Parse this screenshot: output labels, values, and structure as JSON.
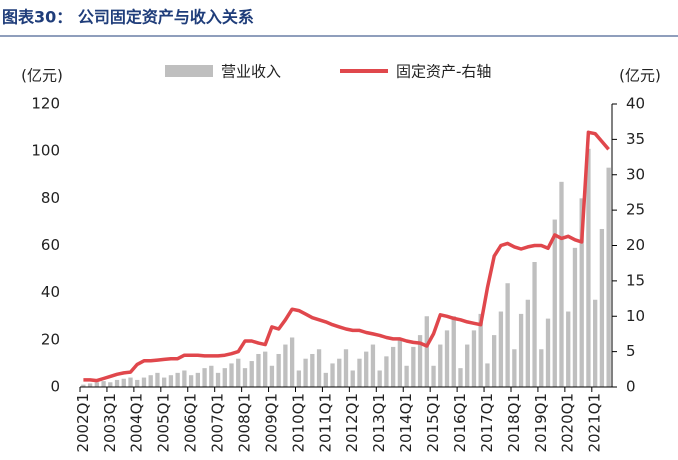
{
  "chart_data": {
    "type": "bar-line",
    "title": "图表30：  公司固定资产与收入关系",
    "y_label": "(亿元)",
    "y2_label": "(亿元)",
    "categories": [
      "2002Q1",
      null,
      null,
      null,
      "2003Q1",
      null,
      null,
      null,
      "2004Q1",
      null,
      null,
      null,
      "2005Q1",
      null,
      null,
      null,
      "2006Q1",
      null,
      null,
      null,
      "2007Q1",
      null,
      null,
      null,
      "2008Q1",
      null,
      null,
      null,
      "2009Q1",
      null,
      null,
      null,
      "2010Q1",
      null,
      null,
      null,
      "2011Q1",
      null,
      null,
      null,
      "2012Q1",
      null,
      null,
      null,
      "2013Q1",
      null,
      null,
      null,
      "2014Q1",
      null,
      null,
      null,
      "2015Q1",
      null,
      null,
      null,
      "2016Q1",
      null,
      null,
      null,
      "2017Q1",
      null,
      null,
      null,
      "2018Q1",
      null,
      null,
      null,
      "2019Q1",
      null,
      null,
      null,
      "2020Q1",
      null,
      null,
      null,
      "2021Q1",
      null,
      null
    ],
    "series": [
      {
        "name": "营业收入",
        "type": "bar",
        "color": "#bfbfbf",
        "values": [
          1,
          1.5,
          2,
          2.5,
          2,
          3,
          3.5,
          4,
          3,
          4,
          5,
          6,
          4,
          5,
          6,
          7,
          5,
          6,
          8,
          9,
          6,
          8,
          10,
          12,
          8,
          11,
          14,
          15,
          9,
          14,
          18,
          21,
          7,
          12,
          14,
          16,
          6,
          10,
          12,
          16,
          7,
          12,
          15,
          18,
          7,
          13,
          17,
          20,
          9,
          17,
          22,
          30,
          9,
          18,
          24,
          30,
          8,
          18,
          24,
          31,
          10,
          22,
          32,
          44,
          16,
          31,
          37,
          53,
          16,
          29,
          71,
          87,
          32,
          59,
          80,
          101,
          37,
          67,
          93
        ]
      },
      {
        "name": "固定资产-右轴",
        "type": "line",
        "axis": "y2",
        "color": "#e0474c",
        "values": [
          1,
          1,
          0.9,
          1.2,
          1.5,
          1.8,
          2,
          2.1,
          3.2,
          3.7,
          3.7,
          3.8,
          3.9,
          4,
          4,
          4.5,
          4.5,
          4.5,
          4.4,
          4.4,
          4.4,
          4.5,
          4.7,
          5,
          6.5,
          6.5,
          6.2,
          6,
          8.5,
          8.2,
          9.5,
          11,
          10.8,
          10.3,
          9.8,
          9.5,
          9.2,
          8.8,
          8.5,
          8.2,
          8,
          8,
          7.7,
          7.5,
          7.3,
          7,
          6.8,
          6.8,
          6.5,
          6.3,
          6.2,
          5.8,
          7.5,
          10.2,
          10,
          9.7,
          9.5,
          9.2,
          9,
          8.8,
          14,
          18.5,
          20,
          20.3,
          19.8,
          19.5,
          19.8,
          20,
          20,
          19.6,
          21.5,
          21,
          21.3,
          20.8,
          20.5,
          36,
          35.8,
          34.7,
          33.6
        ]
      }
    ],
    "ylim": [
      0,
      120
    ],
    "yticks": [
      0,
      20,
      40,
      60,
      80,
      100,
      120
    ],
    "y2lim": [
      0,
      40
    ],
    "y2ticks": [
      0,
      5,
      10,
      15,
      20,
      25,
      30,
      35,
      40
    ],
    "legend": "top"
  }
}
